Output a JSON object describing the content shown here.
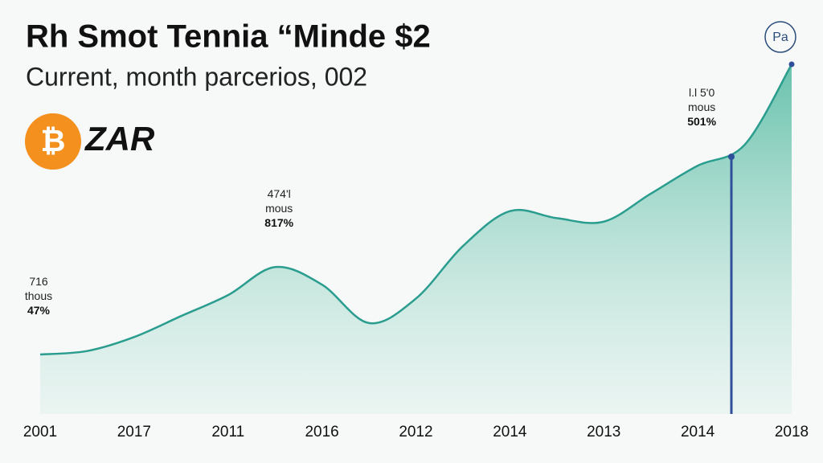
{
  "chart_data": {
    "type": "area",
    "title": "Rh Smot Tennia “Minde $2",
    "subtitle": "Current, month parcerios, 002",
    "currency": "ZAR",
    "badge": "Pa",
    "color": "#2a9d8f",
    "categories": [
      "2001",
      null,
      "2017",
      null,
      "2011",
      null,
      "2016",
      null,
      "2012",
      null,
      "2014",
      null,
      "2013",
      null,
      "2014",
      null,
      "2018"
    ],
    "values": [
      17,
      18,
      22,
      28,
      34,
      42,
      37,
      26,
      33,
      48,
      58,
      56,
      55,
      63,
      71,
      77,
      100
    ],
    "ylim": [
      0,
      100
    ],
    "annotations": [
      {
        "index": 0,
        "lines": [
          "716",
          "thous",
          "47%"
        ]
      },
      {
        "index": 5,
        "lines": [
          "474'l",
          "mous",
          "817%"
        ]
      },
      {
        "index": 14,
        "lines": [
          "l.l 5'0",
          "mous",
          "501%"
        ]
      }
    ]
  }
}
